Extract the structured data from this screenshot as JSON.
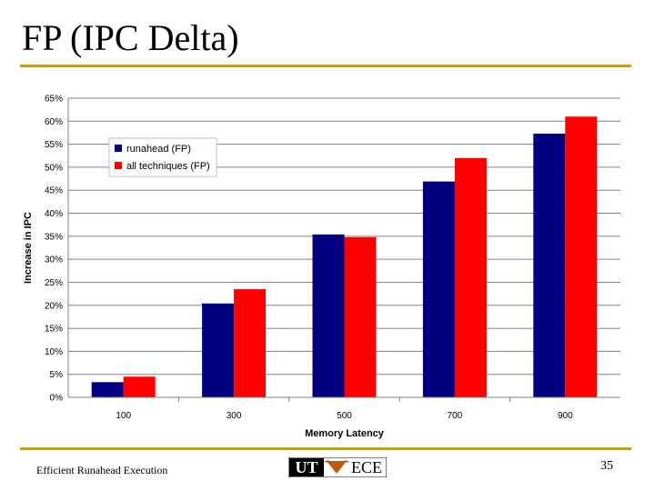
{
  "slide": {
    "title": "FP (IPC Delta)",
    "footer": "Efficient Runahead Execution",
    "page_number": "35",
    "logo": {
      "left_text": "UT",
      "right_text": "ECE"
    }
  },
  "colors": {
    "accent_rule": "#c8a000",
    "series_runahead": "#000080",
    "series_all": "#ff0000",
    "grid": "#808080"
  },
  "chart_data": {
    "type": "bar",
    "categories": [
      "100",
      "300",
      "500",
      "700",
      "900"
    ],
    "series": [
      {
        "name": "runahead (FP)",
        "values": [
          3.3,
          20.4,
          35.4,
          46.9,
          57.3
        ],
        "color": "#000080"
      },
      {
        "name": "all techniques (FP)",
        "values": [
          4.5,
          23.5,
          34.8,
          52.0,
          61.0
        ],
        "color": "#ff0000"
      }
    ],
    "xlabel": "Memory Latency",
    "ylabel": "Increase in IPC",
    "ylim": [
      0,
      65
    ],
    "ytick_step": 5,
    "ytick_labels": [
      "0%",
      "5%",
      "10%",
      "15%",
      "20%",
      "25%",
      "30%",
      "35%",
      "40%",
      "45%",
      "50%",
      "55%",
      "60%",
      "65%"
    ],
    "grid": true,
    "legend": "top-left"
  }
}
